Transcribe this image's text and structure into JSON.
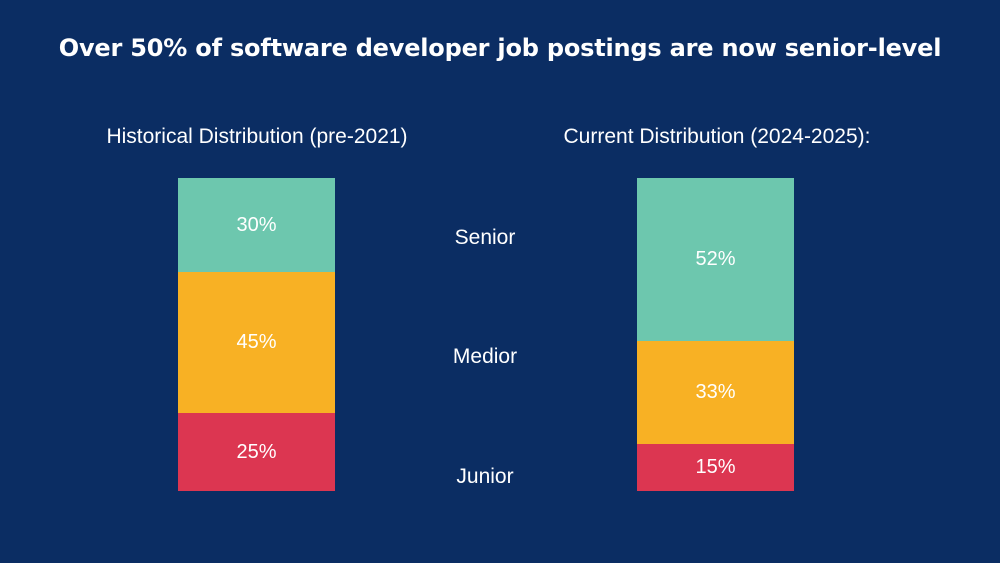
{
  "title": "Over 50% of software developer job postings are now senior-level",
  "colors": {
    "background": "#0b2d63",
    "Senior": "#6dc7ae",
    "Medior": "#f8b124",
    "Junior": "#dc3651"
  },
  "chart_data": {
    "type": "bar",
    "stacked": true,
    "title": "Over 50% of software developer job postings are now senior-level",
    "categories": [
      "Historical Distribution (pre-2021)",
      "Current Distribution (2024-2025):"
    ],
    "series": [
      {
        "name": "Senior",
        "values": [
          30,
          52
        ],
        "labels": [
          "30%",
          "52%"
        ],
        "color": "#6dc7ae"
      },
      {
        "name": "Medior",
        "values": [
          45,
          33
        ],
        "labels": [
          "45%",
          "33%"
        ],
        "color": "#f8b124"
      },
      {
        "name": "Junior",
        "values": [
          25,
          15
        ],
        "labels": [
          "25%",
          "15%"
        ],
        "color": "#dc3651"
      }
    ],
    "unit": "%",
    "ylim": [
      0,
      100
    ],
    "legend": "center-between-bars",
    "grid": false
  }
}
